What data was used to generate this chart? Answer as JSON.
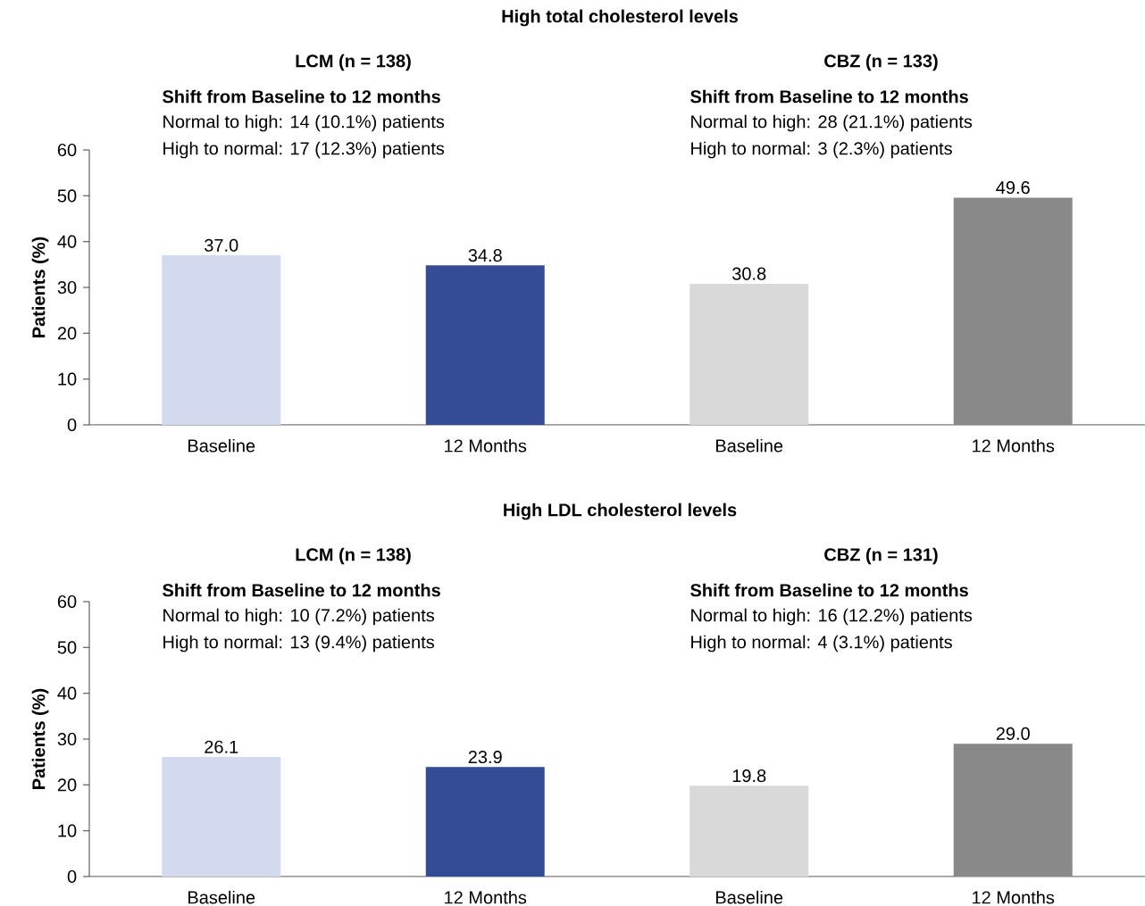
{
  "chart_data": [
    {
      "type": "bar",
      "title": "High total cholesterol levels",
      "ylabel": "Patients (%)",
      "categories": [
        "Baseline",
        "12 Months",
        "Baseline",
        "12 Months"
      ],
      "values": [
        37.0,
        34.8,
        30.8,
        49.6
      ],
      "colors": [
        "#d3d9ee",
        "#344c95",
        "#d9d9d9",
        "#898989"
      ],
      "ylim": [
        0,
        60
      ],
      "yticks": [
        0,
        10,
        20,
        30,
        40,
        50,
        60
      ],
      "value_labels": [
        "37.0",
        "34.8",
        "30.8",
        "49.6"
      ],
      "annotations": [
        "LCM (n = 138)",
        "Shift from Baseline to 12 months",
        "Normal to high: 14 (10.1%) patients",
        "High to normal: 17 (12.3%) patients",
        "CBZ (n = 133)",
        "Shift from Baseline to 12 months",
        "Normal to high: 28 (21.1%) patients",
        "High to normal: 3 (2.3%) patients"
      ]
    },
    {
      "type": "bar",
      "title": "High LDL cholesterol levels",
      "ylabel": "Patients (%)",
      "categories": [
        "Baseline",
        "12 Months",
        "Baseline",
        "12 Months"
      ],
      "values": [
        26.1,
        23.9,
        19.8,
        29.0
      ],
      "colors": [
        "#d3d9ee",
        "#344c95",
        "#d9d9d9",
        "#898989"
      ],
      "ylim": [
        0,
        60
      ],
      "yticks": [
        0,
        10,
        20,
        30,
        40,
        50,
        60
      ],
      "value_labels": [
        "26.1",
        "23.9",
        "19.8",
        "29.0"
      ],
      "annotations": [
        "LCM (n = 138)",
        "Shift from Baseline to 12 months",
        "Normal to high: 10 (7.2%) patients",
        "High to normal: 13 (9.4%) patients",
        "CBZ (n = 131)",
        "Shift from Baseline to 12 months",
        "Normal to high: 16 (12.2%) patients",
        "High to normal: 4 (3.1%) patients"
      ]
    }
  ]
}
